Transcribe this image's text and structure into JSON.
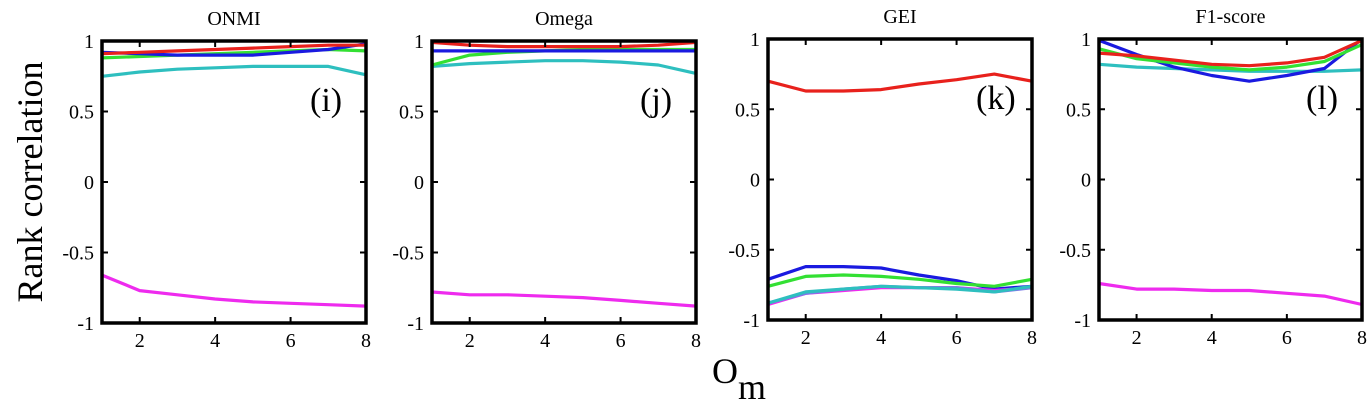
{
  "chart_data": {
    "type": "line",
    "ylabel": "Rank correlation",
    "xlabel_main": "O",
    "xlabel_sub": "m",
    "xlim": [
      1,
      8
    ],
    "ylim": [
      -1,
      1
    ],
    "xticks": [
      2,
      4,
      6,
      8
    ],
    "yticks": [
      {
        "value": -1,
        "label": "-1"
      },
      {
        "value": -0.5,
        "label": "-0.5"
      },
      {
        "value": 0,
        "label": "0"
      },
      {
        "value": 0.5,
        "label": "0.5"
      },
      {
        "value": 1,
        "label": "1"
      }
    ],
    "colors": {
      "red": "#e8211c",
      "blue": "#1a1ae0",
      "green": "#33e033",
      "cyan": "#2ebfbf",
      "magenta": "#ee2bee",
      "slate": "#7a7ae6"
    },
    "panels": [
      {
        "title": "ONMI",
        "label": "(i)",
        "series": [
          {
            "name": "magenta",
            "x": [
              1,
              2,
              3,
              4,
              5,
              6,
              7,
              8
            ],
            "y": [
              -0.66,
              -0.77,
              -0.8,
              -0.83,
              -0.85,
              -0.86,
              -0.87,
              -0.88
            ]
          },
          {
            "name": "cyan",
            "x": [
              1,
              2,
              3,
              4,
              5,
              6,
              7,
              8
            ],
            "y": [
              0.75,
              0.78,
              0.8,
              0.81,
              0.82,
              0.82,
              0.82,
              0.76
            ]
          },
          {
            "name": "green",
            "x": [
              1,
              2,
              3,
              4,
              5,
              6,
              7,
              8
            ],
            "y": [
              0.88,
              0.89,
              0.9,
              0.91,
              0.92,
              0.93,
              0.94,
              0.93
            ]
          },
          {
            "name": "blue",
            "x": [
              1,
              2,
              3,
              4,
              5,
              6,
              7,
              8
            ],
            "y": [
              0.92,
              0.91,
              0.9,
              0.9,
              0.9,
              0.92,
              0.94,
              0.98
            ]
          },
          {
            "name": "red",
            "x": [
              1,
              2,
              3,
              4,
              5,
              6,
              7,
              8
            ],
            "y": [
              0.91,
              0.92,
              0.93,
              0.94,
              0.95,
              0.96,
              0.97,
              0.97
            ]
          }
        ]
      },
      {
        "title": "Omega",
        "label": "(j)",
        "series": [
          {
            "name": "magenta",
            "x": [
              1,
              2,
              3,
              4,
              5,
              6,
              7,
              8
            ],
            "y": [
              -0.78,
              -0.8,
              -0.8,
              -0.81,
              -0.82,
              -0.84,
              -0.86,
              -0.88
            ]
          },
          {
            "name": "cyan",
            "x": [
              1,
              2,
              3,
              4,
              5,
              6,
              7,
              8
            ],
            "y": [
              0.82,
              0.84,
              0.85,
              0.86,
              0.86,
              0.85,
              0.83,
              0.77
            ]
          },
          {
            "name": "green",
            "x": [
              1,
              2,
              3,
              4,
              5,
              6,
              7,
              8
            ],
            "y": [
              0.83,
              0.9,
              0.92,
              0.93,
              0.94,
              0.94,
              0.94,
              0.94
            ]
          },
          {
            "name": "blue",
            "x": [
              1,
              2,
              3,
              4,
              5,
              6,
              7,
              8
            ],
            "y": [
              0.93,
              0.93,
              0.93,
              0.93,
              0.93,
              0.93,
              0.93,
              0.93
            ]
          },
          {
            "name": "red",
            "x": [
              1,
              2,
              3,
              4,
              5,
              6,
              7,
              8
            ],
            "y": [
              0.99,
              0.97,
              0.96,
              0.96,
              0.96,
              0.96,
              0.97,
              0.99
            ]
          }
        ]
      },
      {
        "title": "GEI",
        "label": "(k)",
        "series": [
          {
            "name": "red",
            "x": [
              1,
              2,
              3,
              4,
              5,
              6,
              7,
              8
            ],
            "y": [
              0.7,
              0.63,
              0.63,
              0.64,
              0.68,
              0.71,
              0.75,
              0.7
            ]
          },
          {
            "name": "blue",
            "x": [
              1,
              2,
              3,
              4,
              5,
              6,
              7,
              8
            ],
            "y": [
              -0.71,
              -0.62,
              -0.62,
              -0.63,
              -0.68,
              -0.72,
              -0.78,
              -0.76
            ]
          },
          {
            "name": "green",
            "x": [
              1,
              2,
              3,
              4,
              5,
              6,
              7,
              8
            ],
            "y": [
              -0.76,
              -0.69,
              -0.68,
              -0.69,
              -0.71,
              -0.74,
              -0.76,
              -0.71
            ]
          },
          {
            "name": "magenta",
            "x": [
              1,
              2,
              3,
              4,
              5,
              6,
              7,
              8
            ],
            "y": [
              -0.89,
              -0.81,
              -0.79,
              -0.77,
              -0.77,
              -0.77,
              -0.79,
              -0.77
            ]
          },
          {
            "name": "slate",
            "x": [
              1,
              2,
              3,
              4,
              5,
              6,
              7,
              8
            ],
            "y": [
              -0.88,
              -0.81,
              -0.78,
              -0.76,
              -0.77,
              -0.77,
              -0.8,
              -0.77
            ]
          },
          {
            "name": "cyan",
            "x": [
              1,
              2,
              3,
              4,
              5,
              6,
              7,
              8
            ],
            "y": [
              -0.88,
              -0.8,
              -0.78,
              -0.76,
              -0.77,
              -0.78,
              -0.8,
              -0.76
            ]
          }
        ]
      },
      {
        "title": "F1-score",
        "label": "(l)",
        "series": [
          {
            "name": "magenta",
            "x": [
              1,
              2,
              3,
              4,
              5,
              6,
              7,
              8
            ],
            "y": [
              -0.74,
              -0.78,
              -0.78,
              -0.79,
              -0.79,
              -0.81,
              -0.83,
              -0.89
            ]
          },
          {
            "name": "cyan",
            "x": [
              1,
              2,
              3,
              4,
              5,
              6,
              7,
              8
            ],
            "y": [
              0.82,
              0.8,
              0.79,
              0.78,
              0.77,
              0.77,
              0.77,
              0.78
            ]
          },
          {
            "name": "blue",
            "x": [
              1,
              2,
              3,
              4,
              5,
              6,
              7,
              8
            ],
            "y": [
              0.99,
              0.89,
              0.8,
              0.74,
              0.7,
              0.74,
              0.79,
              1.0
            ]
          },
          {
            "name": "green",
            "x": [
              1,
              2,
              3,
              4,
              5,
              6,
              7,
              8
            ],
            "y": [
              0.93,
              0.86,
              0.83,
              0.8,
              0.78,
              0.8,
              0.84,
              0.96
            ]
          },
          {
            "name": "red",
            "x": [
              1,
              2,
              3,
              4,
              5,
              6,
              7,
              8
            ],
            "y": [
              0.9,
              0.88,
              0.85,
              0.82,
              0.81,
              0.83,
              0.87,
              0.99
            ]
          }
        ]
      }
    ]
  }
}
